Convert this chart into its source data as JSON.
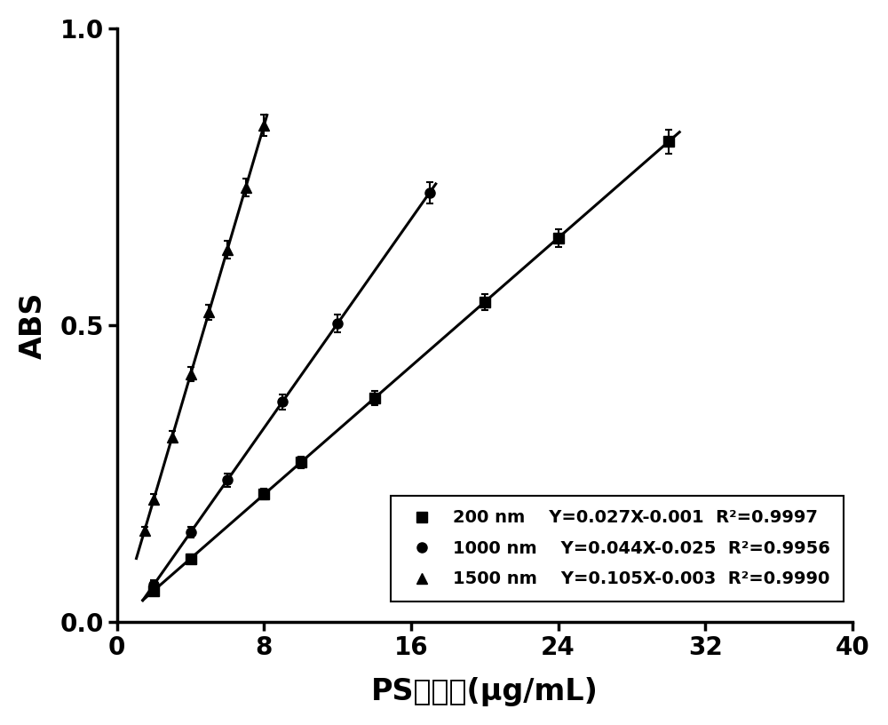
{
  "series": [
    {
      "label": "200 nm",
      "equation": "Y=0.027X-0.001",
      "r2": "R²=0.9997",
      "marker": "s",
      "x": [
        2,
        4,
        8,
        10,
        14,
        20,
        24,
        30
      ],
      "y": [
        0.053,
        0.107,
        0.215,
        0.269,
        0.377,
        0.539,
        0.647,
        0.809
      ],
      "yerr": [
        0.006,
        0.007,
        0.009,
        0.01,
        0.012,
        0.013,
        0.015,
        0.02
      ],
      "slope": 0.027,
      "intercept": -0.001
    },
    {
      "label": "1000 nm",
      "equation": "Y=0.044X-0.025",
      "r2": "R²=0.9956",
      "marker": "o",
      "x": [
        2,
        4,
        6,
        9,
        12,
        17
      ],
      "y": [
        0.063,
        0.151,
        0.239,
        0.371,
        0.503,
        0.723
      ],
      "yerr": [
        0.007,
        0.009,
        0.011,
        0.013,
        0.015,
        0.018
      ],
      "slope": 0.044,
      "intercept": -0.025
    },
    {
      "label": "1500 nm",
      "equation": "Y=0.105X-0.003",
      "r2": "R²=0.9990",
      "marker": "^",
      "x": [
        1.5,
        2,
        3,
        4,
        5,
        6,
        7,
        8
      ],
      "y": [
        0.154,
        0.207,
        0.312,
        0.417,
        0.522,
        0.627,
        0.732,
        0.837
      ],
      "yerr": [
        0.007,
        0.008,
        0.01,
        0.012,
        0.013,
        0.015,
        0.015,
        0.018
      ],
      "slope": 0.105,
      "intercept": -0.003
    }
  ],
  "xlim": [
    0,
    40
  ],
  "ylim": [
    0.0,
    1.0
  ],
  "xticks": [
    0,
    8,
    16,
    24,
    32,
    40
  ],
  "yticks": [
    0.0,
    0.5,
    1.0
  ],
  "xlabel_latin": "PS",
  "xlabel_chinese": "球浓度",
  "xlabel_unit": "(μg/mL)",
  "ylabel": "ABS",
  "background_color": "#ffffff",
  "line_color": "#000000",
  "marker_color": "#000000",
  "marker_size": 8,
  "line_width": 2.2,
  "capsize": 3
}
